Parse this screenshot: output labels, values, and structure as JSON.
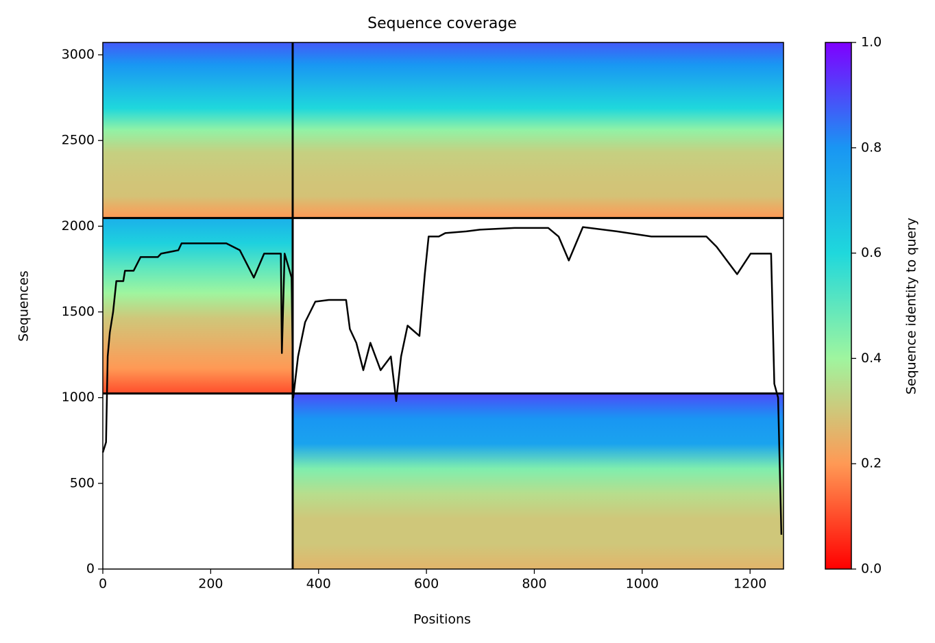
{
  "chart_data": {
    "type": "coverage",
    "title": "Sequence coverage",
    "x_label": "Positions",
    "y_label": "Sequences",
    "xlim": [
      0,
      1262
    ],
    "ylim": [
      0,
      3072
    ],
    "xticks": [
      0,
      200,
      400,
      600,
      800,
      1000,
      1200
    ],
    "yticks": [
      0,
      500,
      1000,
      1500,
      2000,
      2500,
      3000
    ],
    "blocks": [
      {
        "x": [
          0,
          1262
        ],
        "y": [
          2048,
          3072
        ],
        "identity": [
          0.88,
          0.8,
          0.7,
          0.6,
          0.42,
          0.32,
          0.3,
          0.29,
          0.2
        ]
      },
      {
        "x": [
          0,
          352
        ],
        "y": [
          1024,
          2048
        ],
        "identity": [
          0.72,
          0.62,
          0.5,
          0.4,
          0.3,
          0.25,
          0.2,
          0.1
        ]
      },
      {
        "x": [
          352,
          1262
        ],
        "y": [
          0,
          1024
        ],
        "identity": [
          0.9,
          0.8,
          0.76,
          0.45,
          0.35,
          0.3,
          0.3,
          0.26
        ]
      }
    ],
    "boundaries_x": [
      352
    ],
    "boundaries_y": [
      1024,
      2048
    ],
    "coverage": {
      "color": "#000000",
      "x": [
        0,
        6,
        9,
        13,
        19,
        25,
        38,
        41,
        57,
        70,
        102,
        108,
        140,
        146,
        191,
        229,
        254,
        280,
        299,
        330,
        332,
        337,
        350,
        353,
        362,
        375,
        394,
        419,
        451,
        458,
        470,
        483,
        496,
        515,
        534,
        544,
        553,
        565,
        587,
        597,
        604,
        623,
        635,
        674,
        699,
        763,
        826,
        845,
        864,
        890,
        953,
        1017,
        1119,
        1138,
        1176,
        1201,
        1239,
        1245,
        1252,
        1258
      ],
      "values": [
        680,
        740,
        1240,
        1380,
        1500,
        1680,
        1680,
        1740,
        1740,
        1820,
        1820,
        1840,
        1860,
        1900,
        1900,
        1900,
        1860,
        1700,
        1840,
        1840,
        1260,
        1840,
        1700,
        1000,
        1240,
        1440,
        1560,
        1570,
        1570,
        1400,
        1320,
        1160,
        1320,
        1160,
        1240,
        980,
        1240,
        1420,
        1360,
        1720,
        1940,
        1940,
        1960,
        1970,
        1980,
        1990,
        1990,
        1940,
        1800,
        1995,
        1970,
        1940,
        1940,
        1880,
        1720,
        1840,
        1840,
        1080,
        1000,
        200
      ]
    },
    "colorbar": {
      "label": "Sequence identity to query",
      "lim": [
        0,
        1
      ],
      "ticks": [
        {
          "value": 0,
          "label": "0.0"
        },
        0.2,
        0.4,
        0.6,
        0.8,
        {
          "value": 1,
          "label": "1.0"
        }
      ],
      "colors": [
        "#ff0000",
        "#ff9955",
        "#9ff59f",
        "#1fd8dc",
        "#1996f3",
        "#7f00ff"
      ]
    }
  }
}
